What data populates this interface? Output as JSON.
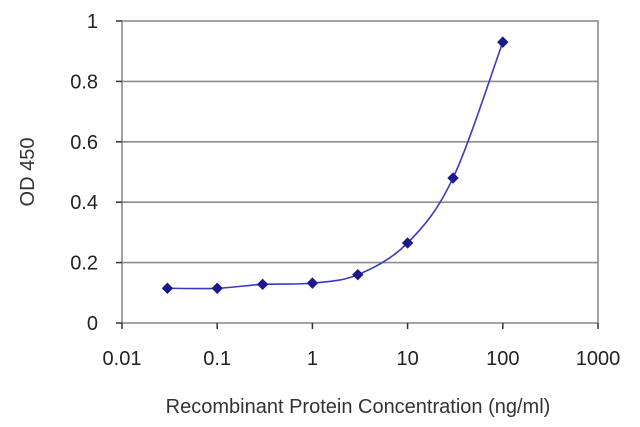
{
  "chart_data": {
    "type": "line",
    "title": "",
    "xlabel": "Recombinant Protein Concentration (ng/ml)",
    "ylabel": "OD 450",
    "x_scale": "log",
    "xlim": [
      0.01,
      1000
    ],
    "ylim": [
      0,
      1
    ],
    "x_ticks": [
      "0.01",
      "0.1",
      "1",
      "10",
      "100",
      "1000"
    ],
    "y_ticks": [
      "0",
      "0.2",
      "0.4",
      "0.6",
      "0.8",
      "1"
    ],
    "grid": "horizontal",
    "legend": "none",
    "color": "#1a1a8c",
    "series": [
      {
        "x": [
          0.03,
          0.1,
          0.3,
          1,
          3,
          10,
          30,
          100
        ],
        "y": [
          0.115,
          0.115,
          0.128,
          0.132,
          0.16,
          0.265,
          0.48,
          0.93
        ]
      }
    ]
  }
}
